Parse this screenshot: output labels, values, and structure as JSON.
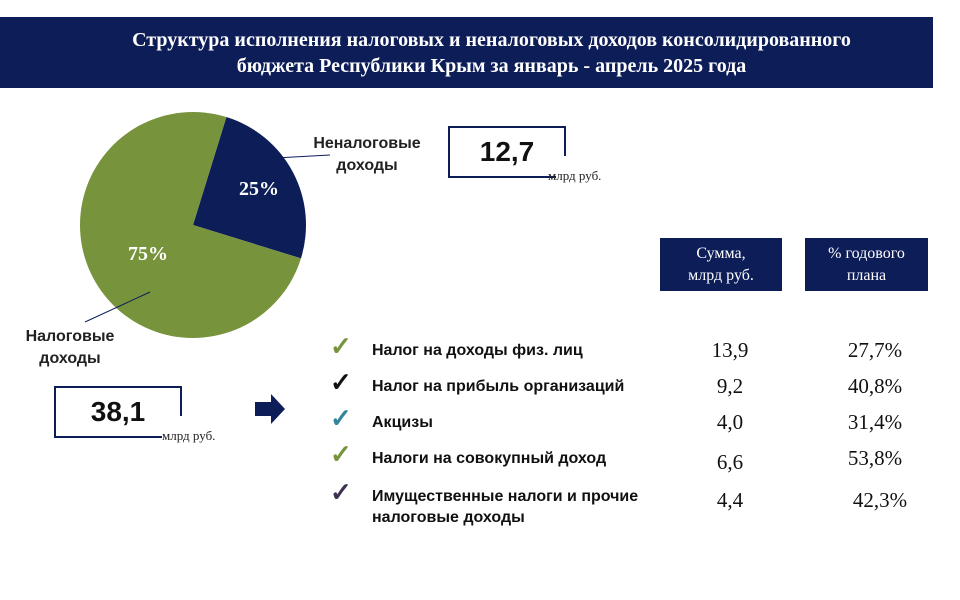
{
  "header": {
    "title_line1": "Структура исполнения налоговых и неналоговых доходов консолидированного",
    "title_line2": "бюджета Республики Крым за январь - апрель 2025 года"
  },
  "chart_data": {
    "type": "pie",
    "slices": [
      {
        "label_line1": "Неналоговые",
        "label_line2": "доходы",
        "value": 25,
        "pct_label": "25%",
        "color": "#0d1d58"
      },
      {
        "label_line1": "Налоговые",
        "label_line2": "доходы",
        "value": 75,
        "pct_label": "75%",
        "color": "#77933c"
      }
    ]
  },
  "nontax_total": {
    "value": "12,7",
    "unit": "млрд руб."
  },
  "tax_total": {
    "value": "38,1",
    "unit": "млрд руб."
  },
  "table": {
    "headers": {
      "sum": [
        "Сумма,",
        "млрд руб."
      ],
      "pct": [
        "% годового",
        "плана"
      ]
    },
    "rows": [
      {
        "label": "Налог на доходы физ. лиц",
        "label2": "",
        "sum": "13,9",
        "pct": "27,7%",
        "check_color": "#77933c"
      },
      {
        "label": "Налог на прибыль организаций",
        "label2": "",
        "sum": "9,2",
        "pct": "40,8%",
        "check_color": "#111111"
      },
      {
        "label": "Акцизы",
        "label2": "",
        "sum": "4,0",
        "pct": "31,4%",
        "check_color": "#31849b"
      },
      {
        "label": "Налоги на совокупный доход",
        "label2": "",
        "sum": "6,6",
        "pct": "53,8%",
        "check_color": "#77933c"
      },
      {
        "label": "Имущественные налоги и прочие",
        "label2": "налоговые доходы",
        "sum": "4,4",
        "pct": "42,3%",
        "check_color": "#3f3151"
      }
    ]
  },
  "icons": {
    "check": "✓",
    "arrow": "arrow-right-icon"
  },
  "colors": {
    "navy": "#0d1d58",
    "green": "#77933c"
  }
}
